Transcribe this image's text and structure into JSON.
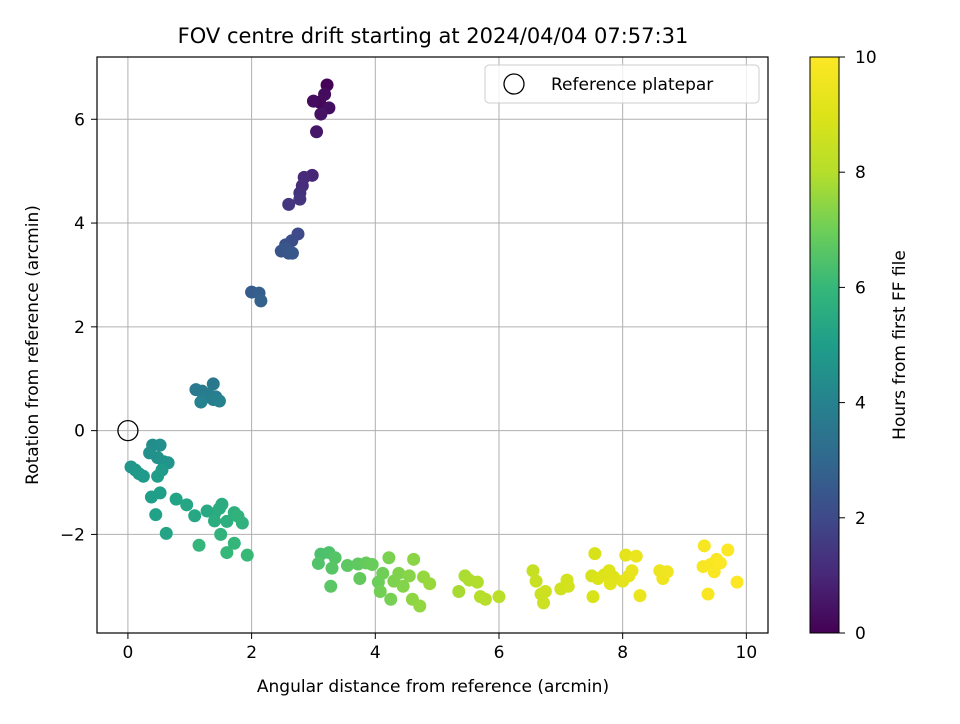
{
  "chart_data": {
    "type": "scatter",
    "title": "FOV centre drift starting at 2024/04/04 07:57:31",
    "xlabel": "Angular distance from reference (arcmin)",
    "ylabel": "Rotation from reference (arcmin)",
    "xlim": [
      -0.5,
      10.35
    ],
    "ylim": [
      -3.9,
      7.2
    ],
    "x_ticks": [
      0,
      2,
      4,
      6,
      8,
      10
    ],
    "y_ticks": [
      -2,
      0,
      2,
      4,
      6
    ],
    "grid": true,
    "legend": {
      "placement": "top-right",
      "entries": [
        "Reference platepar"
      ]
    },
    "reference_point": {
      "x": 0,
      "y": 0
    },
    "colorbar": {
      "label": "Hours from first FF file",
      "range": [
        0,
        10
      ],
      "ticks": [
        0,
        2,
        4,
        6,
        8,
        10
      ],
      "colormap": "viridis"
    },
    "series": [
      {
        "points": [
          {
            "x": 3.22,
            "y": 6.66,
            "c": 0.05
          },
          {
            "x": 3.1,
            "y": 6.33,
            "c": 0.15
          },
          {
            "x": 3.18,
            "y": 6.48,
            "c": 0.25
          },
          {
            "x": 3.0,
            "y": 6.35,
            "c": 0.3
          },
          {
            "x": 3.25,
            "y": 6.22,
            "c": 0.35
          },
          {
            "x": 3.12,
            "y": 6.1,
            "c": 0.45
          },
          {
            "x": 3.05,
            "y": 5.76,
            "c": 0.55
          },
          {
            "x": 2.98,
            "y": 4.92,
            "c": 0.95
          },
          {
            "x": 2.85,
            "y": 4.88,
            "c": 1.05
          },
          {
            "x": 2.82,
            "y": 4.72,
            "c": 1.15
          },
          {
            "x": 2.78,
            "y": 4.58,
            "c": 1.25
          },
          {
            "x": 2.78,
            "y": 4.46,
            "c": 1.35
          },
          {
            "x": 2.6,
            "y": 4.36,
            "c": 1.45
          },
          {
            "x": 2.75,
            "y": 3.79,
            "c": 2.0
          },
          {
            "x": 2.65,
            "y": 3.66,
            "c": 2.1
          },
          {
            "x": 2.55,
            "y": 3.58,
            "c": 2.2
          },
          {
            "x": 2.48,
            "y": 3.46,
            "c": 2.3
          },
          {
            "x": 2.6,
            "y": 3.42,
            "c": 2.35
          },
          {
            "x": 2.55,
            "y": 3.5,
            "c": 2.4
          },
          {
            "x": 2.66,
            "y": 3.42,
            "c": 2.45
          },
          {
            "x": 2.0,
            "y": 2.67,
            "c": 2.6
          },
          {
            "x": 2.12,
            "y": 2.65,
            "c": 2.7
          },
          {
            "x": 2.15,
            "y": 2.5,
            "c": 2.8
          },
          {
            "x": 1.38,
            "y": 0.9,
            "c": 3.6
          },
          {
            "x": 1.1,
            "y": 0.79,
            "c": 3.65
          },
          {
            "x": 1.2,
            "y": 0.76,
            "c": 3.7
          },
          {
            "x": 1.3,
            "y": 0.7,
            "c": 3.75
          },
          {
            "x": 1.42,
            "y": 0.65,
            "c": 3.8
          },
          {
            "x": 1.22,
            "y": 0.62,
            "c": 3.85
          },
          {
            "x": 1.38,
            "y": 0.6,
            "c": 3.9
          },
          {
            "x": 1.48,
            "y": 0.57,
            "c": 3.95
          },
          {
            "x": 1.18,
            "y": 0.55,
            "c": 4.0
          },
          {
            "x": 0.4,
            "y": -0.28,
            "c": 4.4
          },
          {
            "x": 0.52,
            "y": -0.28,
            "c": 4.45
          },
          {
            "x": 0.35,
            "y": -0.43,
            "c": 4.5
          },
          {
            "x": 0.48,
            "y": -0.52,
            "c": 4.55
          },
          {
            "x": 0.58,
            "y": -0.6,
            "c": 4.6
          },
          {
            "x": 0.65,
            "y": -0.62,
            "c": 4.65
          },
          {
            "x": 0.05,
            "y": -0.7,
            "c": 4.7
          },
          {
            "x": 0.12,
            "y": -0.76,
            "c": 4.75
          },
          {
            "x": 0.18,
            "y": -0.83,
            "c": 4.8
          },
          {
            "x": 0.25,
            "y": -0.88,
            "c": 4.85
          },
          {
            "x": 0.55,
            "y": -0.76,
            "c": 4.9
          },
          {
            "x": 0.48,
            "y": -0.88,
            "c": 4.95
          },
          {
            "x": 0.38,
            "y": -1.28,
            "c": 5.0
          },
          {
            "x": 0.52,
            "y": -1.2,
            "c": 5.05
          },
          {
            "x": 0.45,
            "y": -1.62,
            "c": 5.1
          },
          {
            "x": 0.78,
            "y": -1.32,
            "c": 5.2
          },
          {
            "x": 0.62,
            "y": -1.98,
            "c": 5.25
          },
          {
            "x": 0.95,
            "y": -1.43,
            "c": 5.3
          },
          {
            "x": 1.08,
            "y": -1.64,
            "c": 5.35
          },
          {
            "x": 1.28,
            "y": -1.55,
            "c": 5.4
          },
          {
            "x": 1.4,
            "y": -1.6,
            "c": 5.45
          },
          {
            "x": 1.52,
            "y": -1.42,
            "c": 5.5
          },
          {
            "x": 1.48,
            "y": -1.5,
            "c": 5.55
          },
          {
            "x": 1.4,
            "y": -1.74,
            "c": 5.6
          },
          {
            "x": 1.6,
            "y": -1.75,
            "c": 5.65
          },
          {
            "x": 1.72,
            "y": -1.58,
            "c": 5.7
          },
          {
            "x": 1.85,
            "y": -1.78,
            "c": 5.75
          },
          {
            "x": 1.78,
            "y": -1.65,
            "c": 5.8
          },
          {
            "x": 1.5,
            "y": -2.0,
            "c": 5.85
          },
          {
            "x": 1.15,
            "y": -2.21,
            "c": 5.9
          },
          {
            "x": 1.72,
            "y": -2.17,
            "c": 5.95
          },
          {
            "x": 1.6,
            "y": -2.35,
            "c": 6.0
          },
          {
            "x": 1.93,
            "y": -2.4,
            "c": 6.05
          },
          {
            "x": 3.12,
            "y": -2.38,
            "c": 6.4
          },
          {
            "x": 3.25,
            "y": -2.35,
            "c": 6.45
          },
          {
            "x": 3.08,
            "y": -2.56,
            "c": 6.5
          },
          {
            "x": 3.35,
            "y": -2.45,
            "c": 6.55
          },
          {
            "x": 3.3,
            "y": -2.65,
            "c": 6.6
          },
          {
            "x": 3.28,
            "y": -3.0,
            "c": 6.65
          },
          {
            "x": 3.55,
            "y": -2.6,
            "c": 6.7
          },
          {
            "x": 3.72,
            "y": -2.57,
            "c": 6.75
          },
          {
            "x": 3.75,
            "y": -2.85,
            "c": 6.8
          },
          {
            "x": 3.85,
            "y": -2.55,
            "c": 6.85
          },
          {
            "x": 3.95,
            "y": -2.58,
            "c": 6.9
          },
          {
            "x": 4.05,
            "y": -2.92,
            "c": 6.95
          },
          {
            "x": 4.12,
            "y": -2.75,
            "c": 7.0
          },
          {
            "x": 4.08,
            "y": -3.1,
            "c": 7.05
          },
          {
            "x": 4.25,
            "y": -3.25,
            "c": 7.1
          },
          {
            "x": 4.22,
            "y": -2.45,
            "c": 7.15
          },
          {
            "x": 4.3,
            "y": -2.9,
            "c": 7.2
          },
          {
            "x": 4.38,
            "y": -2.75,
            "c": 7.25
          },
          {
            "x": 4.45,
            "y": -3.0,
            "c": 7.3
          },
          {
            "x": 4.55,
            "y": -2.8,
            "c": 7.35
          },
          {
            "x": 4.62,
            "y": -2.48,
            "c": 7.4
          },
          {
            "x": 4.6,
            "y": -3.25,
            "c": 7.45
          },
          {
            "x": 4.72,
            "y": -3.38,
            "c": 7.5
          },
          {
            "x": 4.78,
            "y": -2.82,
            "c": 7.55
          },
          {
            "x": 4.88,
            "y": -2.95,
            "c": 7.6
          },
          {
            "x": 5.35,
            "y": -3.1,
            "c": 7.8
          },
          {
            "x": 5.45,
            "y": -2.8,
            "c": 7.85
          },
          {
            "x": 5.52,
            "y": -2.88,
            "c": 7.9
          },
          {
            "x": 5.65,
            "y": -2.92,
            "c": 7.95
          },
          {
            "x": 5.7,
            "y": -3.2,
            "c": 8.0
          },
          {
            "x": 5.78,
            "y": -3.25,
            "c": 8.05
          },
          {
            "x": 6.0,
            "y": -3.2,
            "c": 8.1
          },
          {
            "x": 6.55,
            "y": -2.7,
            "c": 8.4
          },
          {
            "x": 6.6,
            "y": -2.9,
            "c": 8.45
          },
          {
            "x": 6.68,
            "y": -3.15,
            "c": 8.5
          },
          {
            "x": 6.72,
            "y": -3.32,
            "c": 8.55
          },
          {
            "x": 6.75,
            "y": -3.1,
            "c": 8.6
          },
          {
            "x": 7.0,
            "y": -3.05,
            "c": 8.65
          },
          {
            "x": 7.1,
            "y": -2.88,
            "c": 8.7
          },
          {
            "x": 7.12,
            "y": -3.0,
            "c": 8.75
          },
          {
            "x": 7.5,
            "y": -2.8,
            "c": 8.8
          },
          {
            "x": 7.55,
            "y": -2.37,
            "c": 8.85
          },
          {
            "x": 7.52,
            "y": -3.2,
            "c": 8.9
          },
          {
            "x": 7.6,
            "y": -2.85,
            "c": 8.95
          },
          {
            "x": 7.7,
            "y": -2.78,
            "c": 9.0
          },
          {
            "x": 7.78,
            "y": -2.7,
            "c": 9.05
          },
          {
            "x": 7.85,
            "y": -2.82,
            "c": 9.1
          },
          {
            "x": 7.8,
            "y": -2.95,
            "c": 9.15
          },
          {
            "x": 8.0,
            "y": -2.9,
            "c": 9.2
          },
          {
            "x": 8.05,
            "y": -2.4,
            "c": 9.25
          },
          {
            "x": 8.1,
            "y": -2.8,
            "c": 9.3
          },
          {
            "x": 8.15,
            "y": -2.7,
            "c": 9.35
          },
          {
            "x": 8.22,
            "y": -2.42,
            "c": 9.4
          },
          {
            "x": 8.28,
            "y": -3.18,
            "c": 9.45
          },
          {
            "x": 8.6,
            "y": -2.7,
            "c": 9.5
          },
          {
            "x": 8.65,
            "y": -2.85,
            "c": 9.55
          },
          {
            "x": 8.72,
            "y": -2.72,
            "c": 9.6
          },
          {
            "x": 9.32,
            "y": -2.22,
            "c": 9.8
          },
          {
            "x": 9.3,
            "y": -2.62,
            "c": 9.82
          },
          {
            "x": 9.38,
            "y": -3.15,
            "c": 9.85
          },
          {
            "x": 9.42,
            "y": -2.58,
            "c": 9.87
          },
          {
            "x": 9.48,
            "y": -2.72,
            "c": 9.9
          },
          {
            "x": 9.52,
            "y": -2.48,
            "c": 9.92
          },
          {
            "x": 9.58,
            "y": -2.55,
            "c": 9.95
          },
          {
            "x": 9.7,
            "y": -2.3,
            "c": 9.97
          },
          {
            "x": 9.85,
            "y": -2.92,
            "c": 10.0
          }
        ]
      }
    ]
  }
}
